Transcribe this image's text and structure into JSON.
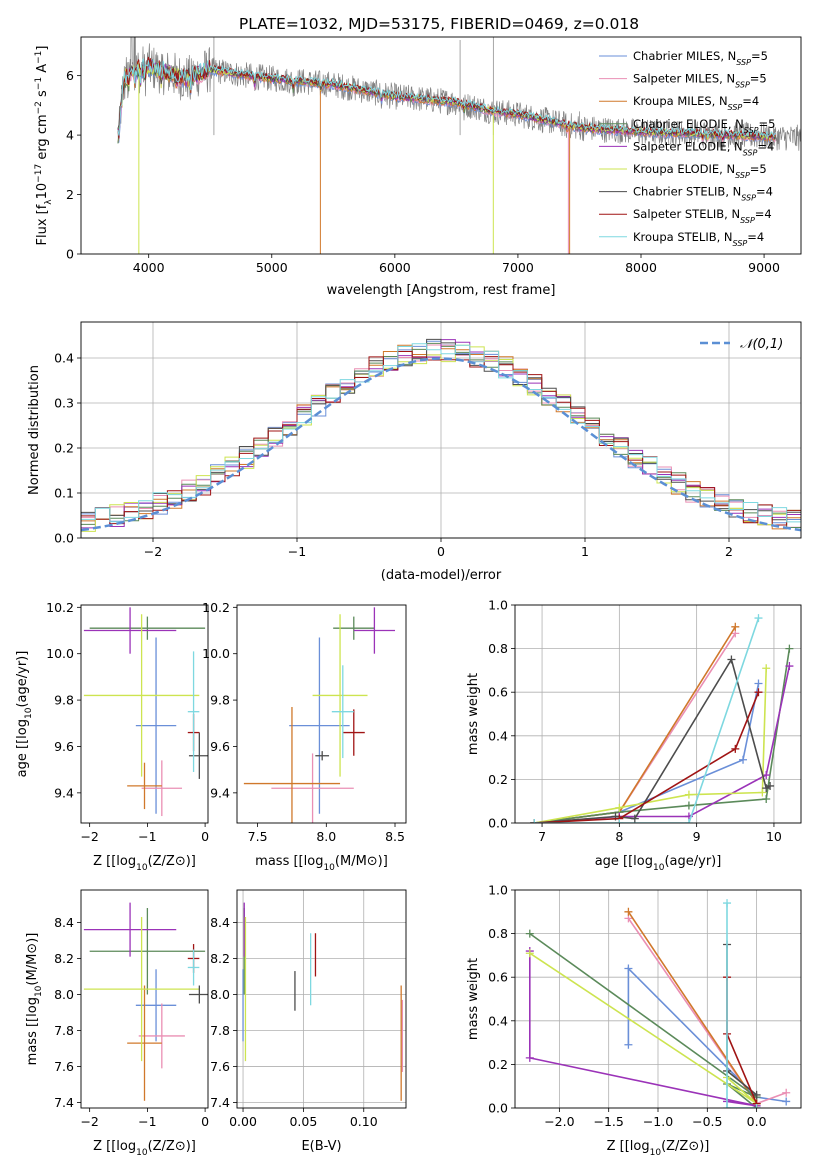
{
  "title": "PLATE=1032, MJD=53175, FIBERID=0469, z=0.018",
  "colors": {
    "Chabrier MILES": "#6a8fd8",
    "Salpeter MILES": "#ea8fb4",
    "Kroupa MILES": "#d0782b",
    "Chabrier ELODIE": "#5b8a5a",
    "Salpeter ELODIE": "#9b33b8",
    "Kroupa ELODIE": "#cde450",
    "Chabrier STELIB": "#4d4d4d",
    "Salpeter STELIB": "#a01414",
    "Kroupa STELIB": "#7ed8e0",
    "data": "#808080",
    "normal": "#5b8fd4"
  },
  "chart_data": [
    {
      "id": "spectrum",
      "type": "line",
      "xlabel": "wavelength [Angstrom, rest frame]",
      "ylabel": "Flux [f_λ 10^-17 erg cm^-2 s^-1 A^-1]",
      "xlim": [
        3450,
        9300
      ],
      "ylim": [
        0,
        7.3
      ],
      "xticks": [
        4000,
        5000,
        6000,
        7000,
        8000,
        9000
      ],
      "yticks": [
        0,
        2,
        4,
        6
      ],
      "grid": false,
      "legend_position": "top-right",
      "legend": [
        "Chabrier MILES, N_SSP=5",
        "Salpeter MILES, N_SSP=5",
        "Kroupa MILES, N_SSP=4",
        "Chabrier ELODIE, N_SSP=5",
        "Salpeter ELODIE, N_SSP=4",
        "Kroupa ELODIE, N_SSP=5",
        "Chabrier STELIB, N_SSP=4",
        "Salpeter STELIB, N_SSP=4",
        "Kroupa STELIB, N_SSP=4"
      ],
      "continuum_x": [
        3750,
        3800,
        3900,
        4000,
        4300,
        4500,
        4800,
        5000,
        5500,
        6000,
        6500,
        6800,
        7000,
        7500,
        8000,
        8500,
        9000,
        9300
      ],
      "continuum_y": [
        4.0,
        5.9,
        6.2,
        6.3,
        5.9,
        6.2,
        6.0,
        5.9,
        5.7,
        5.3,
        5.1,
        4.8,
        4.7,
        4.25,
        4.1,
        4.05,
        3.95,
        3.9
      ],
      "models_end_at": 9100
    },
    {
      "id": "residuals",
      "type": "histogram",
      "xlabel": "(data-model)/error",
      "ylabel": "Normed distribution",
      "xlim": [
        -2.5,
        2.5
      ],
      "ylim": [
        0,
        0.48
      ],
      "xticks": [
        -2,
        -1,
        0,
        1,
        2
      ],
      "yticks": [
        0.0,
        0.1,
        0.2,
        0.3,
        0.4
      ],
      "grid": true,
      "legend_position": "top-right",
      "legend": [
        "𝒩(0,1)"
      ],
      "bin_width": 0.1,
      "reference": "N(0,1) density"
    },
    {
      "id": "age_vs_Z",
      "type": "errorbar",
      "xlabel": "Z [log10(Z/Z⊙)]",
      "ylabel": "age  [log10(age/yr)]",
      "xlim": [
        -2.15,
        0.05
      ],
      "ylim": [
        9.27,
        10.21
      ],
      "xticks": [
        -2,
        -1,
        0
      ],
      "yticks": [
        9.4,
        9.6,
        9.8,
        10.0,
        10.2
      ],
      "grid": false,
      "series": [
        {
          "name": "Chabrier MILES",
          "x": -0.85,
          "xerr": 0.35,
          "y": 9.69,
          "yerr": 0.38
        },
        {
          "name": "Salpeter MILES",
          "x": -0.75,
          "xerr": 0.35,
          "y": 9.42,
          "yerr": 0.12
        },
        {
          "name": "Kroupa MILES",
          "x": -1.05,
          "xerr": 0.3,
          "y": 9.43,
          "yerr": 0.1
        },
        {
          "name": "Chabrier ELODIE",
          "x": -1.0,
          "xerr": 1.0,
          "y": 10.11,
          "yerr": 0.05
        },
        {
          "name": "Salpeter ELODIE",
          "x": -1.3,
          "xerr": 0.8,
          "y": 10.1,
          "yerr": 0.1
        },
        {
          "name": "Kroupa ELODIE",
          "x": -1.1,
          "xerr": 1.0,
          "y": 9.82,
          "yerr": 0.35
        },
        {
          "name": "Chabrier STELIB",
          "x": -0.1,
          "xerr": 0.18,
          "y": 9.56,
          "yerr": 0.1
        },
        {
          "name": "Salpeter STELIB",
          "x": -0.2,
          "xerr": 0.1,
          "y": 9.66,
          "yerr": 0.08
        },
        {
          "name": "Kroupa STELIB",
          "x": -0.2,
          "xerr": 0.1,
          "y": 9.75,
          "yerr": 0.26
        }
      ]
    },
    {
      "id": "age_vs_mass",
      "type": "errorbar",
      "xlabel": "mass [log10(M/M⊙)]",
      "ylabel": "",
      "xlim": [
        7.35,
        8.58
      ],
      "ylim": [
        9.27,
        10.21
      ],
      "xticks": [
        7.5,
        8.0,
        8.5
      ],
      "yticks": [
        9.4,
        9.6,
        9.8,
        10.0,
        10.2
      ],
      "grid": false,
      "series": [
        {
          "name": "Chabrier MILES",
          "x": 7.95,
          "xerr": 0.22,
          "y": 9.69,
          "yerr": 0.38
        },
        {
          "name": "Salpeter MILES",
          "x": 7.9,
          "xerr": 0.3,
          "y": 9.42,
          "yerr": 0.15
        },
        {
          "name": "Kroupa MILES",
          "x": 7.75,
          "xerr": 0.35,
          "y": 9.44,
          "yerr": 0.33
        },
        {
          "name": "Chabrier ELODIE",
          "x": 8.2,
          "xerr": 0.15,
          "y": 10.11,
          "yerr": 0.05
        },
        {
          "name": "Salpeter ELODIE",
          "x": 8.35,
          "xerr": 0.15,
          "y": 10.1,
          "yerr": 0.1
        },
        {
          "name": "Kroupa ELODIE",
          "x": 8.1,
          "xerr": 0.2,
          "y": 9.82,
          "yerr": 0.35
        },
        {
          "name": "Chabrier STELIB",
          "x": 7.97,
          "xerr": 0.05,
          "y": 9.56,
          "yerr": 0.02
        },
        {
          "name": "Salpeter STELIB",
          "x": 8.2,
          "xerr": 0.08,
          "y": 9.66,
          "yerr": 0.1
        },
        {
          "name": "Kroupa STELIB",
          "x": 8.12,
          "xerr": 0.08,
          "y": 9.75,
          "yerr": 0.2
        }
      ]
    },
    {
      "id": "weight_vs_age",
      "type": "line",
      "xlabel": "age  [log10(age/yr)]",
      "ylabel": "mass weight",
      "xlim": [
        6.65,
        10.35
      ],
      "ylim": [
        0.0,
        1.0
      ],
      "xticks": [
        7,
        8,
        9,
        10
      ],
      "yticks": [
        0.0,
        0.2,
        0.4,
        0.6,
        0.8,
        1.0
      ],
      "grid": true,
      "series": [
        {
          "name": "Chabrier MILES",
          "x": [
            6.9,
            8.0,
            9.6,
            9.8
          ],
          "y": [
            0.0,
            0.05,
            0.29,
            0.64
          ]
        },
        {
          "name": "Salpeter MILES",
          "x": [
            6.9,
            8.0,
            9.5
          ],
          "y": [
            0.0,
            0.05,
            0.87
          ]
        },
        {
          "name": "Kroupa MILES",
          "x": [
            6.9,
            8.0,
            9.5
          ],
          "y": [
            0.0,
            0.05,
            0.9
          ]
        },
        {
          "name": "Chabrier ELODIE",
          "x": [
            6.9,
            8.0,
            8.9,
            9.9,
            10.2
          ],
          "y": [
            0.0,
            0.05,
            0.08,
            0.11,
            0.8
          ]
        },
        {
          "name": "Salpeter ELODIE",
          "x": [
            6.9,
            8.0,
            8.9,
            9.9,
            10.2
          ],
          "y": [
            0.0,
            0.03,
            0.03,
            0.22,
            0.72
          ]
        },
        {
          "name": "Kroupa ELODIE",
          "x": [
            6.9,
            8.0,
            8.9,
            9.85,
            9.9
          ],
          "y": [
            0.0,
            0.07,
            0.13,
            0.14,
            0.71
          ]
        },
        {
          "name": "Chabrier STELIB",
          "x": [
            6.9,
            7.95,
            8.2,
            9.45,
            9.9,
            9.95
          ],
          "y": [
            0.0,
            0.03,
            0.02,
            0.75,
            0.16,
            0.17
          ]
        },
        {
          "name": "Salpeter STELIB",
          "x": [
            6.9,
            8.0,
            9.5,
            9.8
          ],
          "y": [
            0.0,
            0.02,
            0.34,
            0.6
          ]
        },
        {
          "name": "Kroupa STELIB",
          "x": [
            6.9,
            8.0,
            8.9,
            9.8
          ],
          "y": [
            0.0,
            0.0,
            0.0,
            0.94
          ]
        }
      ]
    },
    {
      "id": "mass_vs_Z",
      "type": "errorbar",
      "xlabel": "Z [log10(Z/Z⊙)]",
      "ylabel": "mass [log10(M/M⊙)]",
      "xlim": [
        -2.15,
        0.05
      ],
      "ylim": [
        7.37,
        8.58
      ],
      "xticks": [
        -2,
        -1,
        0
      ],
      "yticks": [
        7.4,
        7.6,
        7.8,
        8.0,
        8.2,
        8.4
      ],
      "grid": false,
      "series": [
        {
          "name": "Chabrier MILES",
          "x": -0.85,
          "xerr": 0.35,
          "y": 7.94,
          "yerr": 0.2
        },
        {
          "name": "Salpeter MILES",
          "x": -0.75,
          "xerr": 0.4,
          "y": 7.77,
          "yerr": 0.18
        },
        {
          "name": "Kroupa MILES",
          "x": -1.05,
          "xerr": 0.3,
          "y": 7.73,
          "yerr": 0.32
        },
        {
          "name": "Chabrier ELODIE",
          "x": -1.0,
          "xerr": 1.0,
          "y": 8.24,
          "yerr": 0.24
        },
        {
          "name": "Salpeter ELODIE",
          "x": -1.3,
          "xerr": 0.8,
          "y": 8.36,
          "yerr": 0.15
        },
        {
          "name": "Kroupa ELODIE",
          "x": -1.1,
          "xerr": 1.0,
          "y": 8.03,
          "yerr": 0.4
        },
        {
          "name": "Chabrier STELIB",
          "x": -0.1,
          "xerr": 0.18,
          "y": 8.0,
          "yerr": 0.05
        },
        {
          "name": "Salpeter STELIB",
          "x": -0.2,
          "xerr": 0.1,
          "y": 8.2,
          "yerr": 0.08
        },
        {
          "name": "Kroupa STELIB",
          "x": -0.2,
          "xerr": 0.1,
          "y": 8.15,
          "yerr": 0.1
        }
      ]
    },
    {
      "id": "mass_vs_ebv",
      "type": "errorbar",
      "xlabel": "E(B-V)",
      "ylabel": "",
      "xlim": [
        -0.005,
        0.135
      ],
      "ylim": [
        7.37,
        8.58
      ],
      "xticks": [
        0.0,
        0.05,
        0.1
      ],
      "yticks": [
        7.4,
        7.6,
        7.8,
        8.0,
        8.2,
        8.4
      ],
      "grid": true,
      "series": [
        {
          "name": "Chabrier MILES",
          "x": 0.0,
          "y": 7.94,
          "yerr": 0.2
        },
        {
          "name": "Salpeter MILES",
          "x": 0.132,
          "y": 7.77,
          "yerr": 0.2
        },
        {
          "name": "Kroupa MILES",
          "x": 0.131,
          "y": 7.73,
          "yerr": 0.32
        },
        {
          "name": "Chabrier ELODIE",
          "x": 0.001,
          "y": 8.24,
          "yerr": 0.24
        },
        {
          "name": "Salpeter ELODIE",
          "x": 0.001,
          "y": 8.36,
          "yerr": 0.15
        },
        {
          "name": "Kroupa ELODIE",
          "x": 0.002,
          "y": 8.03,
          "yerr": 0.4
        },
        {
          "name": "Chabrier STELIB",
          "x": 0.043,
          "y": 8.02,
          "yerr": 0.11
        },
        {
          "name": "Salpeter STELIB",
          "x": 0.06,
          "y": 8.22,
          "yerr": 0.12
        },
        {
          "name": "Kroupa STELIB",
          "x": 0.056,
          "y": 8.14,
          "yerr": 0.2
        }
      ]
    },
    {
      "id": "weight_vs_Z",
      "type": "line",
      "xlabel": "Z [log10(Z/Z⊙)]",
      "ylabel": "mass weight",
      "xlim": [
        -2.45,
        0.45
      ],
      "ylim": [
        0.0,
        1.0
      ],
      "xticks": [
        -2.0,
        -1.5,
        -1.0,
        -0.5,
        0.0
      ],
      "yticks": [
        0.0,
        0.2,
        0.4,
        0.6,
        0.8,
        1.0
      ],
      "grid": true,
      "series": [
        {
          "name": "Chabrier MILES",
          "x": [
            -1.3,
            -1.3,
            0.0,
            0.3
          ],
          "y": [
            0.29,
            0.64,
            0.05,
            0.03
          ]
        },
        {
          "name": "Salpeter MILES",
          "x": [
            -1.3,
            0.0,
            0.3
          ],
          "y": [
            0.87,
            0.02,
            0.07
          ]
        },
        {
          "name": "Kroupa MILES",
          "x": [
            -1.3,
            0.0
          ],
          "y": [
            0.9,
            0.02
          ]
        },
        {
          "name": "Chabrier ELODIE",
          "x": [
            -2.3,
            0.0,
            -0.3,
            0.0
          ],
          "y": [
            0.8,
            0.05,
            0.11,
            0.0
          ]
        },
        {
          "name": "Salpeter ELODIE",
          "x": [
            -2.3,
            -2.3,
            0.0,
            -0.3
          ],
          "y": [
            0.72,
            0.23,
            0.01,
            0.03
          ]
        },
        {
          "name": "Kroupa ELODIE",
          "x": [
            -2.3,
            0.0,
            -0.3
          ],
          "y": [
            0.71,
            0.02,
            0.14
          ]
        },
        {
          "name": "Chabrier STELIB",
          "x": [
            -0.3,
            -0.3,
            0.0
          ],
          "y": [
            0.75,
            0.17,
            0.06
          ]
        },
        {
          "name": "Salpeter STELIB",
          "x": [
            -0.3,
            -0.3,
            0.0
          ],
          "y": [
            0.6,
            0.34,
            0.02
          ]
        },
        {
          "name": "Kroupa STELIB",
          "x": [
            -0.3,
            -0.3,
            0.0
          ],
          "y": [
            0.94,
            0.0,
            0.0
          ]
        }
      ]
    }
  ]
}
